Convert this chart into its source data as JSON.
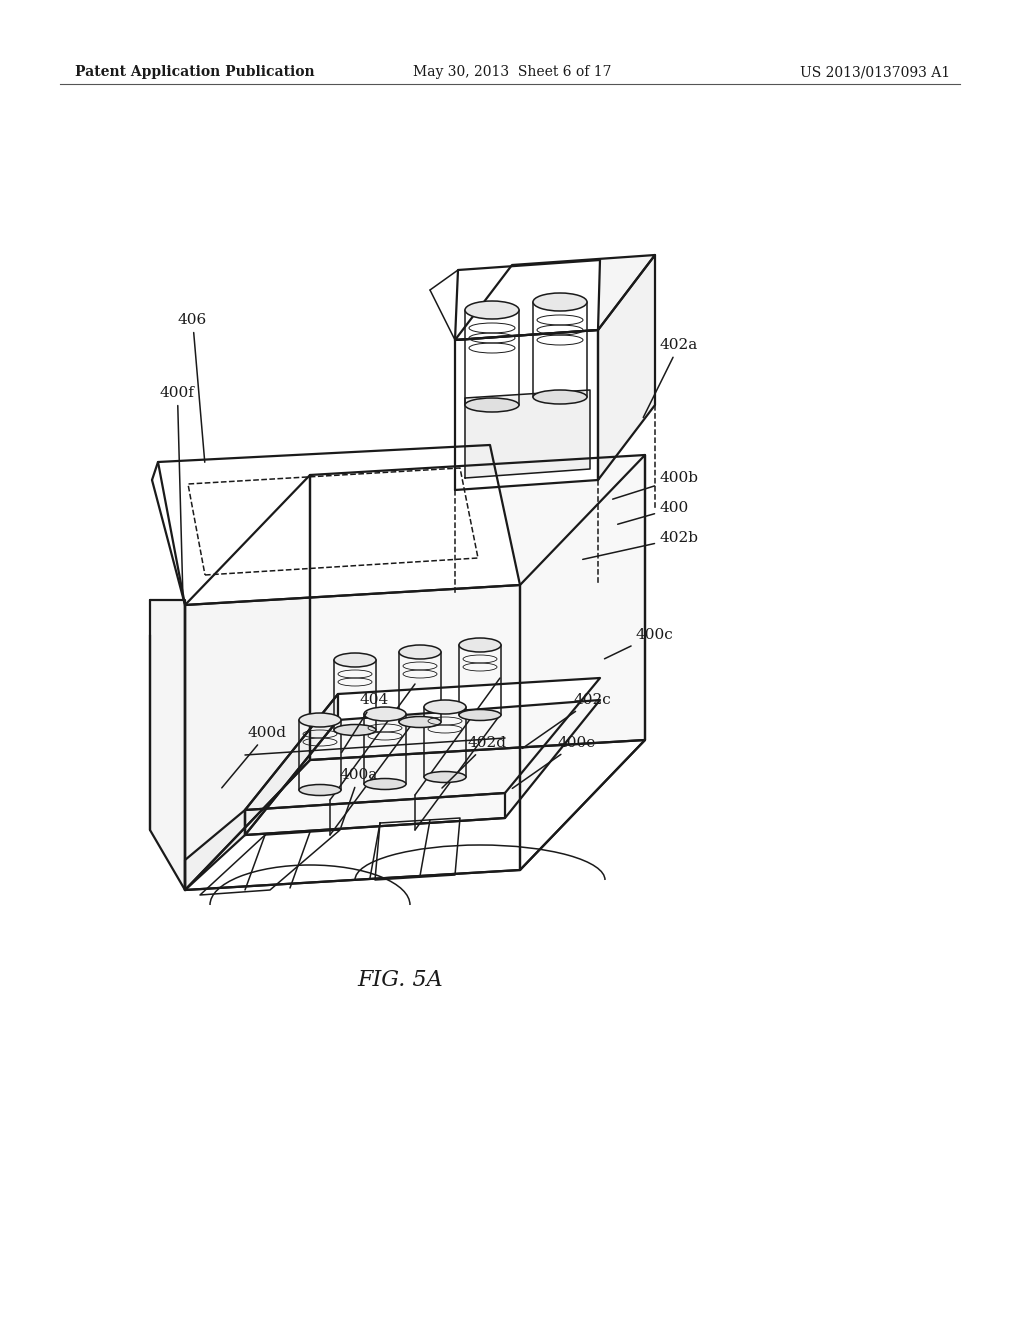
{
  "bg_color": "#ffffff",
  "line_color": "#1a1a1a",
  "header_left": "Patent Application Publication",
  "header_center": "May 30, 2013  Sheet 6 of 17",
  "header_right": "US 2013/0137093 A1",
  "figure_label": "FIG. 5A",
  "lw_main": 1.6,
  "lw_thin": 1.1,
  "font_size_header": 10,
  "font_size_label": 11,
  "font_size_fig": 16
}
